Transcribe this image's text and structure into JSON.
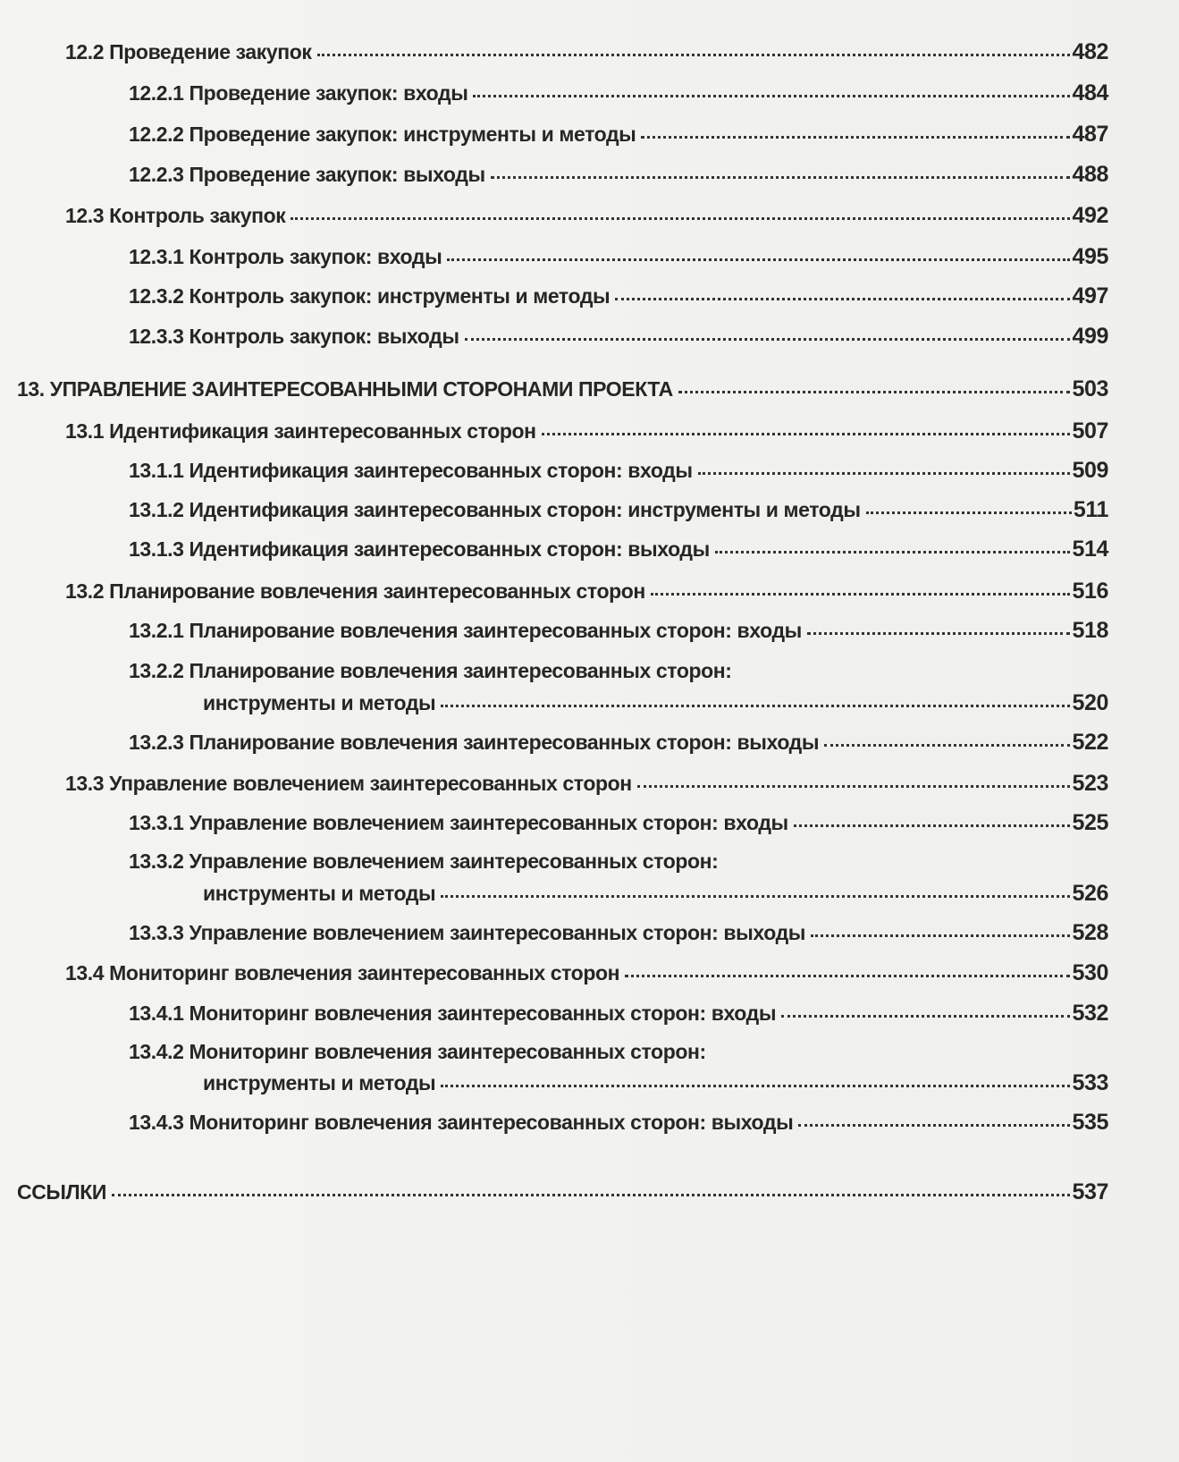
{
  "toc": {
    "entries": [
      {
        "lines": [
          "12.2 Проведение закупок"
        ],
        "page": 482
      },
      {
        "lines": [
          "12.2.1 Проведение закупок: входы"
        ],
        "page": 484
      },
      {
        "lines": [
          "12.2.2 Проведение закупок: инструменты и методы"
        ],
        "page": 487
      },
      {
        "lines": [
          "12.2.3 Проведение закупок: выходы"
        ],
        "page": 488
      },
      {
        "lines": [
          "12.3 Контроль закупок"
        ],
        "page": 492
      },
      {
        "lines": [
          "12.3.1 Контроль закупок: входы"
        ],
        "page": 495
      },
      {
        "lines": [
          "12.3.2 Контроль закупок: инструменты и методы"
        ],
        "page": 497
      },
      {
        "lines": [
          "12.3.3 Контроль закупок: выходы"
        ],
        "page": 499
      },
      {
        "lines": [
          "13. УПРАВЛЕНИЕ ЗАИНТЕРЕСОВАННЫМИ СТОРОНАМИ ПРОЕКТА"
        ],
        "page": 503
      },
      {
        "lines": [
          "13.1 Идентификация заинтересованных сторон"
        ],
        "page": 507
      },
      {
        "lines": [
          "13.1.1 Идентификация заинтересованных сторон: входы"
        ],
        "page": 509
      },
      {
        "lines": [
          "13.1.2 Идентификация заинтересованных сторон: инструменты и методы"
        ],
        "page": 511
      },
      {
        "lines": [
          "13.1.3 Идентификация заинтересованных сторон: выходы"
        ],
        "page": 514
      },
      {
        "lines": [
          "13.2 Планирование вовлечения заинтересованных сторон"
        ],
        "page": 516
      },
      {
        "lines": [
          "13.2.1 Планирование вовлечения заинтересованных сторон: входы"
        ],
        "page": 518
      },
      {
        "lines": [
          "13.2.2 Планирование вовлечения заинтересованных сторон:",
          "инструменты и методы"
        ],
        "page": 520
      },
      {
        "lines": [
          "13.2.3 Планирование вовлечения заинтересованных сторон: выходы"
        ],
        "page": 522
      },
      {
        "lines": [
          "13.3 Управление вовлечением заинтересованных сторон"
        ],
        "page": 523
      },
      {
        "lines": [
          "13.3.1 Управление вовлечением заинтересованных сторон: входы"
        ],
        "page": 525
      },
      {
        "lines": [
          "13.3.2 Управление вовлечением заинтересованных сторон:",
          "инструменты и методы"
        ],
        "page": 526
      },
      {
        "lines": [
          "13.3.3 Управление вовлечением заинтересованных сторон: выходы"
        ],
        "page": 528
      },
      {
        "lines": [
          "13.4 Мониторинг вовлечения заинтересованных сторон"
        ],
        "page": 530
      },
      {
        "lines": [
          "13.4.1 Мониторинг вовлечения заинтересованных сторон: входы"
        ],
        "page": 532
      },
      {
        "lines": [
          "13.4.2 Мониторинг вовлечения заинтересованных сторон:",
          "инструменты и методы"
        ],
        "page": 533
      },
      {
        "lines": [
          "13.4.3 Мониторинг вовлечения заинтересованных сторон: выходы"
        ],
        "page": 535
      },
      {
        "lines": [
          "ССЫЛКИ"
        ],
        "page": 537
      }
    ]
  }
}
